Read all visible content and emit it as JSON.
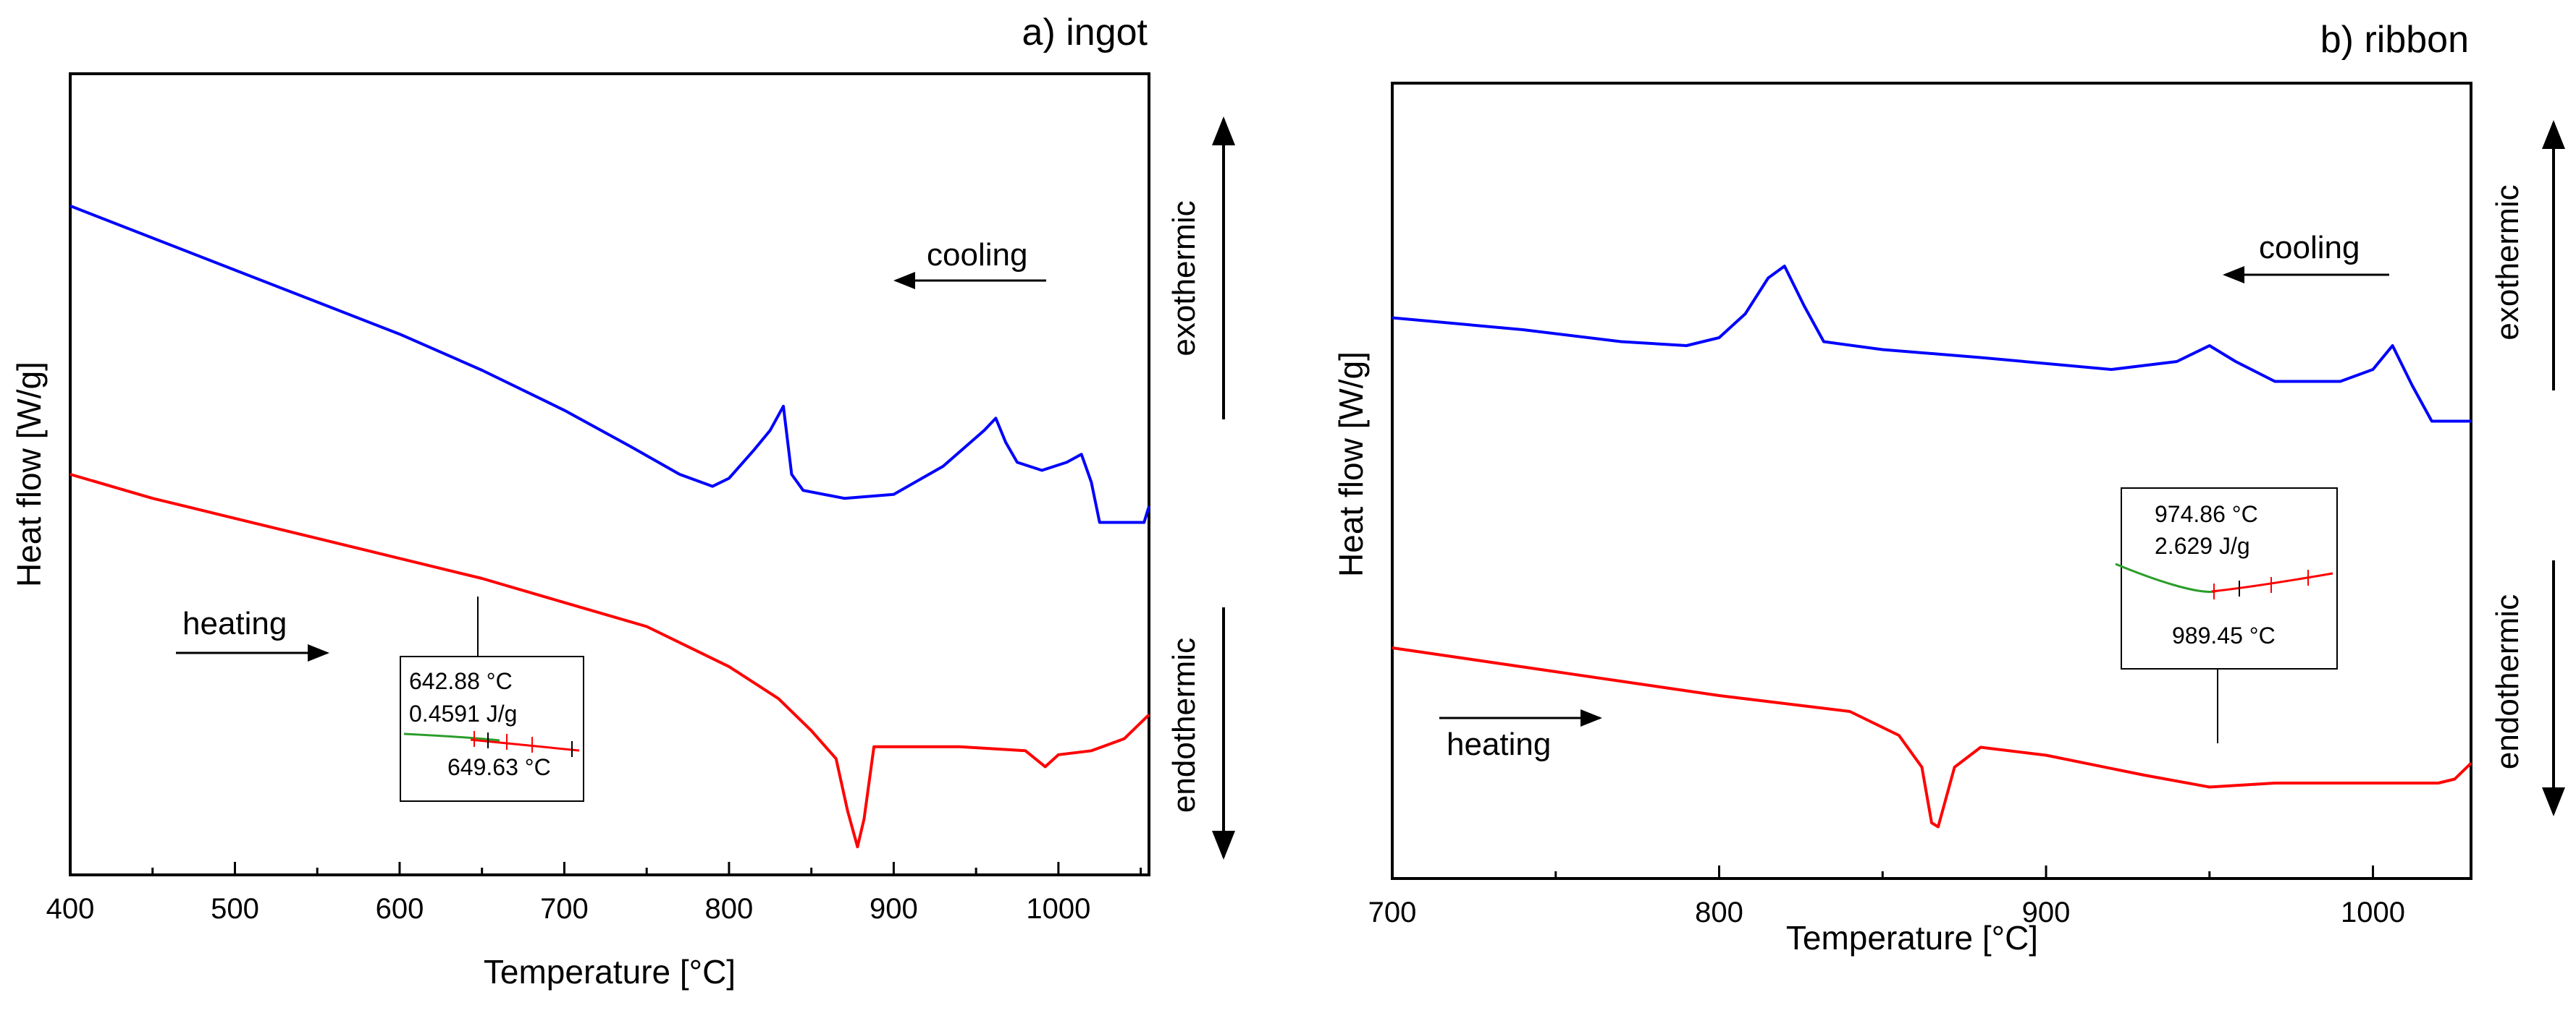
{
  "chart_data": [
    {
      "type": "line",
      "title": "a) ingot",
      "xlabel": "Temperature [°C]",
      "ylabel": "Heat flow [W/g]",
      "xlim": [
        400,
        1055
      ],
      "ylim": [
        0,
        100
      ],
      "xticks": [
        400,
        500,
        600,
        700,
        800,
        900,
        1000
      ],
      "xtick_labels": [
        "400",
        "500",
        "600",
        "700",
        "800",
        "900",
        "1000"
      ],
      "y_tick_labels_shown": false,
      "series": [
        {
          "name": "cooling",
          "color": "#0000ff",
          "x": [
            400,
            450,
            500,
            550,
            600,
            650,
            700,
            740,
            770,
            790,
            800,
            815,
            825,
            833,
            838,
            845,
            870,
            900,
            930,
            955,
            962,
            968,
            975,
            990,
            1005,
            1014,
            1020,
            1025,
            1030,
            1045,
            1052,
            1055
          ],
          "y": [
            83.5,
            79.5,
            75.5,
            71.5,
            67.5,
            63,
            58,
            53.5,
            50,
            48.5,
            49.5,
            53,
            55.5,
            58.5,
            50,
            48,
            47,
            47.5,
            51,
            55.5,
            57,
            54,
            51.5,
            50.5,
            51.5,
            52.5,
            49,
            44,
            44,
            44,
            44,
            46
          ]
        },
        {
          "name": "heating",
          "color": "#ff0000",
          "x": [
            400,
            450,
            500,
            550,
            600,
            650,
            700,
            750,
            800,
            830,
            850,
            865,
            872,
            878,
            882,
            888,
            900,
            940,
            980,
            992,
            1000,
            1020,
            1040,
            1055
          ],
          "y": [
            50,
            47,
            44.5,
            42,
            39.5,
            37,
            34,
            31,
            26,
            22,
            18,
            14.5,
            8,
            3.5,
            7,
            16,
            16,
            16,
            15.5,
            13.5,
            15,
            15.5,
            17,
            20
          ]
        }
      ],
      "annotations": [
        {
          "text": "cooling",
          "arrow": "left"
        },
        {
          "text": "heating",
          "arrow": "right"
        },
        {
          "text": "exothermic",
          "arrow": "up"
        },
        {
          "text": "endothermic",
          "arrow": "down"
        }
      ],
      "callout": {
        "line1": "642.88 °C",
        "line2": "0.4591 J/g",
        "line3": "649.63 °C"
      }
    },
    {
      "type": "line",
      "title": "b) ribbon",
      "xlabel": "Temperature [°C]",
      "ylabel": "Heat flow [W/g]",
      "xlim": [
        700,
        1030
      ],
      "ylim": [
        0,
        100
      ],
      "xticks": [
        700,
        800,
        900,
        1000
      ],
      "xtick_labels": [
        "700",
        "800",
        "900",
        "1000"
      ],
      "y_tick_labels_shown": false,
      "series": [
        {
          "name": "cooling",
          "color": "#0000ff",
          "x": [
            700,
            740,
            770,
            790,
            800,
            808,
            815,
            820,
            826,
            832,
            850,
            880,
            920,
            940,
            950,
            958,
            970,
            990,
            1000,
            1006,
            1012,
            1018,
            1025,
            1030
          ],
          "y": [
            70.5,
            69,
            67.5,
            67,
            68,
            71,
            75.5,
            77,
            72,
            67.5,
            66.5,
            65.5,
            64,
            65,
            67,
            65,
            62.5,
            62.5,
            64,
            67,
            62,
            57.5,
            57.5,
            57.5
          ]
        },
        {
          "name": "heating",
          "color": "#ff0000",
          "x": [
            700,
            750,
            800,
            840,
            855,
            862,
            865,
            867,
            872,
            880,
            900,
            930,
            950,
            970,
            1000,
            1020,
            1025,
            1030
          ],
          "y": [
            29,
            26,
            23,
            21,
            18,
            14,
            7,
            6.5,
            14,
            16.5,
            15.5,
            13,
            11.5,
            12,
            12,
            12,
            12.5,
            14.5
          ]
        }
      ],
      "annotations": [
        {
          "text": "cooling",
          "arrow": "left"
        },
        {
          "text": "heating",
          "arrow": "right"
        },
        {
          "text": "exothermic",
          "arrow": "up"
        },
        {
          "text": "endothermic",
          "arrow": "down"
        }
      ],
      "callout": {
        "line1": "974.86 °C",
        "line2": "2.629 J/g",
        "line3": "989.45 °C"
      }
    }
  ]
}
